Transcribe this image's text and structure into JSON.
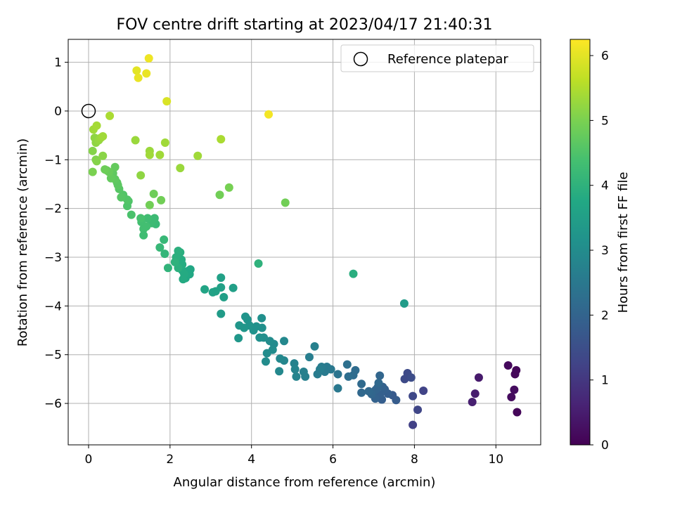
{
  "chart_data": {
    "type": "scatter",
    "title": "FOV centre drift starting at 2023/04/17 21:40:31",
    "xlabel": "Angular distance from reference (arcmin)",
    "ylabel": "Rotation from reference (arcmin)",
    "xlim": [
      -0.5,
      11.1
    ],
    "ylim": [
      -6.85,
      1.47
    ],
    "xticks": [
      0,
      2,
      4,
      6,
      8,
      10
    ],
    "yticks": [
      -6,
      -5,
      -4,
      -3,
      -2,
      -1,
      0,
      1
    ],
    "grid": true,
    "legend": {
      "location": "upper right",
      "entries": [
        "Reference platepar"
      ]
    },
    "reference_point": {
      "label": "Reference platepar",
      "x": 0,
      "y": 0
    },
    "colorbar": {
      "label": "Hours from first FF file",
      "colormap": "viridis",
      "range": [
        0,
        6.25
      ],
      "ticks": [
        0,
        1,
        2,
        3,
        4,
        5,
        6
      ]
    },
    "series": [
      {
        "points": [
          [
            10.3,
            -5.22,
            0.15
          ],
          [
            10.5,
            -5.32,
            0.1
          ],
          [
            10.47,
            -5.4,
            0.12
          ],
          [
            10.45,
            -5.72,
            0.2
          ],
          [
            10.38,
            -5.87,
            0.18
          ],
          [
            10.52,
            -6.18,
            0.1
          ],
          [
            9.58,
            -5.47,
            0.45
          ],
          [
            9.49,
            -5.8,
            0.5
          ],
          [
            9.42,
            -5.97,
            0.55
          ],
          [
            7.96,
            -6.44,
            1.2
          ],
          [
            8.08,
            -6.13,
            1.3
          ],
          [
            8.22,
            -5.74,
            1.25
          ],
          [
            7.96,
            -5.85,
            1.35
          ],
          [
            7.83,
            -5.38,
            1.4
          ],
          [
            7.76,
            -5.5,
            1.4
          ],
          [
            7.92,
            -5.47,
            1.45
          ],
          [
            7.55,
            -5.93,
            1.8
          ],
          [
            7.46,
            -5.83,
            1.75
          ],
          [
            7.35,
            -5.8,
            1.85
          ],
          [
            7.27,
            -5.71,
            1.9
          ],
          [
            7.22,
            -5.66,
            1.95
          ],
          [
            7.2,
            -5.92,
            1.85
          ],
          [
            7.15,
            -5.82,
            1.9
          ],
          [
            7.1,
            -5.67,
            2.0
          ],
          [
            7.05,
            -5.72,
            2.0
          ],
          [
            7.04,
            -5.9,
            1.95
          ],
          [
            7.15,
            -5.43,
            2.05
          ],
          [
            7.12,
            -5.58,
            2.1
          ],
          [
            6.95,
            -5.81,
            2.05
          ],
          [
            6.88,
            -5.75,
            2.1
          ],
          [
            6.7,
            -5.78,
            2.1
          ],
          [
            6.7,
            -5.6,
            2.15
          ],
          [
            6.55,
            -5.32,
            2.2
          ],
          [
            6.5,
            -5.42,
            2.2
          ],
          [
            6.35,
            -5.2,
            2.3
          ],
          [
            6.38,
            -5.45,
            2.25
          ],
          [
            6.12,
            -5.4,
            2.4
          ],
          [
            6.12,
            -5.69,
            2.5
          ],
          [
            5.95,
            -5.3,
            2.5
          ],
          [
            5.85,
            -5.25,
            2.55
          ],
          [
            5.8,
            -5.35,
            2.55
          ],
          [
            5.72,
            -5.25,
            2.6
          ],
          [
            5.68,
            -5.3,
            2.65
          ],
          [
            5.62,
            -5.4,
            2.6
          ],
          [
            5.55,
            -4.83,
            2.7
          ],
          [
            5.42,
            -5.05,
            2.65
          ],
          [
            5.28,
            -5.35,
            2.7
          ],
          [
            5.32,
            -5.45,
            2.7
          ],
          [
            5.05,
            -5.18,
            2.75
          ],
          [
            5.07,
            -5.3,
            2.8
          ],
          [
            5.1,
            -5.45,
            2.8
          ],
          [
            4.8,
            -4.72,
            2.9
          ],
          [
            4.8,
            -5.12,
            2.85
          ],
          [
            4.7,
            -5.08,
            2.9
          ],
          [
            4.68,
            -5.34,
            2.9
          ],
          [
            4.55,
            -4.78,
            2.95
          ],
          [
            4.52,
            -4.9,
            3.0
          ],
          [
            4.45,
            -4.72,
            3.0
          ],
          [
            4.38,
            -4.97,
            3.0
          ],
          [
            4.35,
            -5.14,
            3.0
          ],
          [
            4.3,
            -4.65,
            3.05
          ],
          [
            4.26,
            -4.45,
            3.1
          ],
          [
            4.25,
            -4.25,
            3.1
          ],
          [
            4.2,
            -4.65,
            3.1
          ],
          [
            4.12,
            -4.42,
            3.15
          ],
          [
            4.05,
            -4.5,
            3.15
          ],
          [
            3.95,
            -4.4,
            3.2
          ],
          [
            3.9,
            -4.28,
            3.2
          ],
          [
            3.85,
            -4.22,
            3.2
          ],
          [
            3.82,
            -4.45,
            3.25
          ],
          [
            3.7,
            -4.4,
            3.25
          ],
          [
            3.68,
            -4.66,
            3.3
          ],
          [
            3.25,
            -4.16,
            3.4
          ],
          [
            3.55,
            -3.63,
            3.5
          ],
          [
            3.32,
            -3.82,
            3.5
          ],
          [
            3.25,
            -3.62,
            3.55
          ],
          [
            3.25,
            -3.42,
            3.55
          ],
          [
            3.12,
            -3.7,
            3.6
          ],
          [
            3.05,
            -3.72,
            3.6
          ],
          [
            2.85,
            -3.66,
            3.65
          ],
          [
            2.5,
            -3.25,
            3.7
          ],
          [
            2.48,
            -3.35,
            3.75
          ],
          [
            2.45,
            -3.28,
            3.75
          ],
          [
            2.38,
            -3.43,
            3.75
          ],
          [
            2.35,
            -3.35,
            3.8
          ],
          [
            2.32,
            -3.45,
            3.8
          ],
          [
            2.3,
            -3.27,
            3.8
          ],
          [
            2.3,
            -3.15,
            3.85
          ],
          [
            2.28,
            -3.05,
            3.85
          ],
          [
            2.25,
            -2.9,
            3.9
          ],
          [
            2.22,
            -3.12,
            3.85
          ],
          [
            2.2,
            -2.87,
            3.95
          ],
          [
            2.2,
            -3.22,
            3.95
          ],
          [
            2.15,
            -3.0,
            3.95
          ],
          [
            2.12,
            -3.1,
            4.0
          ],
          [
            1.95,
            -3.22,
            4.05
          ],
          [
            1.87,
            -2.93,
            4.1
          ],
          [
            1.85,
            -2.64,
            4.15
          ],
          [
            1.75,
            -2.8,
            4.15
          ],
          [
            1.65,
            -2.32,
            4.2
          ],
          [
            1.62,
            -2.2,
            4.25
          ],
          [
            1.55,
            -2.3,
            4.25
          ],
          [
            1.45,
            -2.2,
            4.3
          ],
          [
            1.35,
            -2.42,
            4.35
          ],
          [
            1.35,
            -2.55,
            4.3
          ],
          [
            1.3,
            -2.28,
            4.35
          ],
          [
            1.28,
            -2.2,
            4.4
          ],
          [
            1.42,
            -2.37,
            4.35
          ],
          [
            1.05,
            -2.13,
            4.45
          ],
          [
            0.95,
            -1.95,
            4.5
          ],
          [
            0.98,
            -1.85,
            4.5
          ],
          [
            0.95,
            -1.82,
            4.55
          ],
          [
            0.85,
            -1.72,
            4.55
          ],
          [
            0.8,
            -1.77,
            4.6
          ],
          [
            0.75,
            -1.6,
            4.6
          ],
          [
            0.7,
            -1.47,
            4.65
          ],
          [
            0.72,
            -1.52,
            4.65
          ],
          [
            0.65,
            -1.4,
            4.7
          ],
          [
            0.6,
            -1.28,
            4.7
          ],
          [
            0.65,
            -1.15,
            4.75
          ],
          [
            0.55,
            -1.38,
            4.75
          ],
          [
            0.5,
            -1.25,
            4.8
          ],
          [
            0.45,
            -1.22,
            4.8
          ],
          [
            0.4,
            -1.2,
            4.85
          ],
          [
            1.6,
            -1.7,
            4.85
          ],
          [
            1.78,
            -1.83,
            4.9
          ],
          [
            1.5,
            -1.93,
            4.9
          ],
          [
            3.22,
            -1.72,
            4.9
          ],
          [
            3.45,
            -1.57,
            4.95
          ],
          [
            4.83,
            -1.88,
            4.9
          ],
          [
            4.17,
            -3.13,
            4.0
          ],
          [
            6.5,
            -3.34,
            3.9
          ],
          [
            7.75,
            -3.95,
            3.4
          ],
          [
            0.1,
            -1.25,
            5.0
          ],
          [
            0.18,
            -1.0,
            5.05
          ],
          [
            0.2,
            -1.03,
            5.1
          ],
          [
            0.1,
            -0.82,
            5.1
          ],
          [
            0.35,
            -0.92,
            5.15
          ],
          [
            0.15,
            -0.55,
            5.2
          ],
          [
            0.18,
            -0.65,
            5.2
          ],
          [
            0.25,
            -0.6,
            5.25
          ],
          [
            0.3,
            -0.55,
            5.3
          ],
          [
            0.35,
            -0.52,
            5.35
          ],
          [
            0.12,
            -0.38,
            5.35
          ],
          [
            0.2,
            -0.3,
            5.4
          ],
          [
            0.52,
            -0.1,
            5.45
          ],
          [
            1.15,
            -0.6,
            5.3
          ],
          [
            1.28,
            -1.32,
            5.2
          ],
          [
            1.5,
            -0.82,
            5.3
          ],
          [
            1.5,
            -0.9,
            5.35
          ],
          [
            1.75,
            -0.9,
            5.35
          ],
          [
            1.88,
            -0.65,
            5.35
          ],
          [
            2.25,
            -1.17,
            5.3
          ],
          [
            2.68,
            -0.92,
            5.35
          ],
          [
            3.25,
            -0.58,
            5.45
          ],
          [
            1.18,
            0.83,
            6.0
          ],
          [
            1.22,
            0.68,
            6.05
          ],
          [
            1.42,
            0.77,
            6.05
          ],
          [
            1.48,
            1.08,
            6.1
          ],
          [
            1.92,
            0.2,
            5.9
          ],
          [
            4.42,
            -0.07,
            6.15
          ]
        ]
      }
    ]
  }
}
